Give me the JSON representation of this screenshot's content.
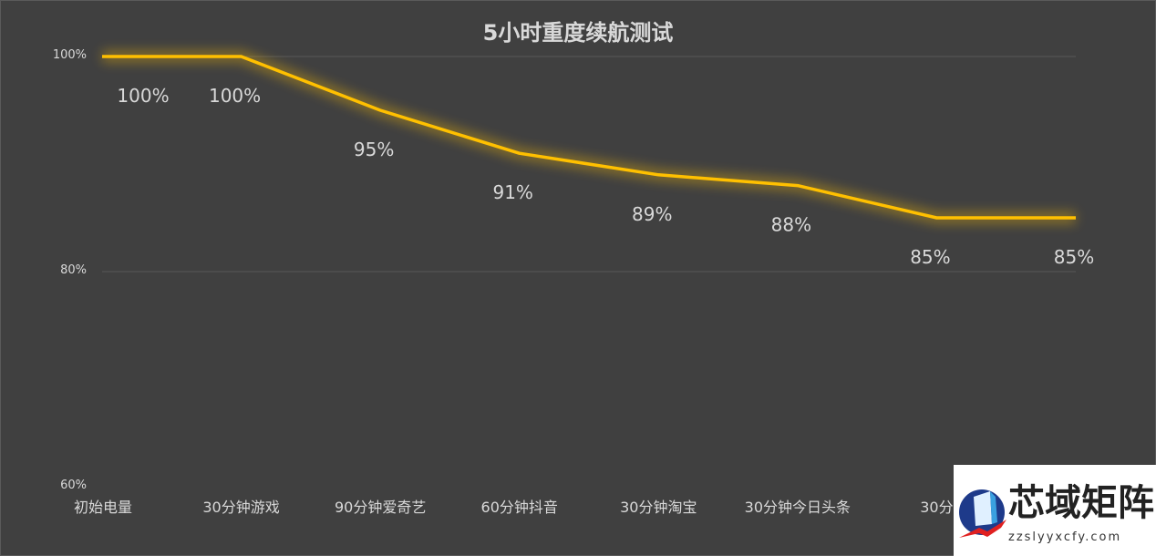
{
  "chart_data": {
    "type": "line",
    "title": "5小时重度续航测试",
    "categories": [
      "初始电量",
      "30分钟游戏",
      "90分钟爱奇艺",
      "60分钟抖音",
      "30分钟淘宝",
      "30分钟今日头条",
      "30分",
      ""
    ],
    "series": [
      {
        "values": [
          100,
          100,
          95,
          91,
          89,
          88,
          85,
          85
        ]
      }
    ],
    "data_labels": [
      "100%",
      "100%",
      "95%",
      "91%",
      "89%",
      "88%",
      "85%",
      "85%"
    ],
    "yticks": [
      60,
      80,
      100
    ],
    "ytick_labels": [
      "60%",
      "80%",
      "100%"
    ],
    "ylim": [
      60,
      100
    ],
    "grid": true,
    "legend": "none",
    "colors": {
      "background": "#404040",
      "line": "#FFC000",
      "text": "#D9D9D9",
      "grid": "#595959"
    }
  },
  "watermark": {
    "title": "芯域矩阵",
    "url": "zzslyyxcfy.com"
  }
}
